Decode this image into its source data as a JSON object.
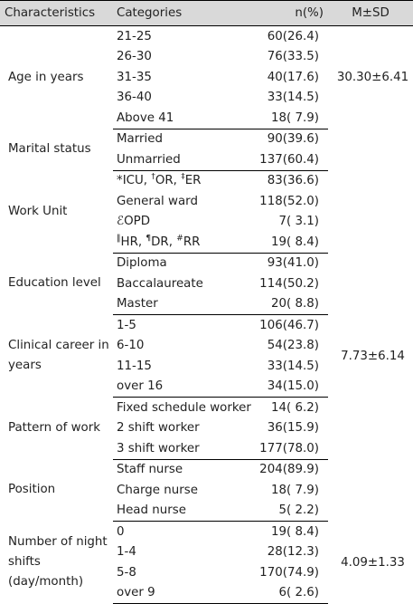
{
  "headers": {
    "characteristics": "Characteristics",
    "categories": "Categories",
    "n_pct": "n(%)",
    "m_sd": "M±SD"
  },
  "groups": {
    "age": {
      "label": "Age  in  years",
      "msd": "30.30±6.41",
      "rows": [
        {
          "cat": "21-25",
          "n": "60(26.4)"
        },
        {
          "cat": "26-30",
          "n": "76(33.5)"
        },
        {
          "cat": "31-35",
          "n": "40(17.6)"
        },
        {
          "cat": "36-40",
          "n": "33(14.5)"
        },
        {
          "cat": "Above  41",
          "n": "18(  7.9)"
        }
      ]
    },
    "marital": {
      "label": "Marital  status",
      "rows": [
        {
          "cat": "Married",
          "n": "90(39.6)"
        },
        {
          "cat": "Unmarried",
          "n": "137(60.4)"
        }
      ]
    },
    "work_unit": {
      "label": "Work  Unit",
      "rows": [
        {
          "m1": "*",
          "a": "ICU, ",
          "m2": "†",
          "b": "OR, ",
          "m3": "‡",
          "c": "ER",
          "n": "83(36.6)"
        },
        {
          "cat": "General  ward",
          "n": "118(52.0)"
        },
        {
          "m1": "ℰ",
          "a": "OPD",
          "n": "7(  3.1)"
        },
        {
          "m1": "‖",
          "a": "HR,  ",
          "m2": "¶",
          "b": "DR,  ",
          "m3": "#",
          "c": "RR",
          "n": "19(  8.4)"
        }
      ]
    },
    "education": {
      "label": "Education  level",
      "rows": [
        {
          "cat": "Diploma",
          "n": "93(41.0)"
        },
        {
          "cat": "Baccalaureate",
          "n": "114(50.2)"
        },
        {
          "cat": "Master",
          "n": "20(  8.8)"
        }
      ]
    },
    "career": {
      "label": "Clinical  career in  years",
      "msd": "7.73±6.14",
      "rows": [
        {
          "cat": "1-5",
          "n": "106(46.7)"
        },
        {
          "cat": "6-10",
          "n": "54(23.8)"
        },
        {
          "cat": "11-15",
          "n": "33(14.5)"
        },
        {
          "cat": "over  16",
          "n": "34(15.0)"
        }
      ]
    },
    "pattern": {
      "label": "Pattern  of work",
      "rows": [
        {
          "cat": "Fixed  schedule  worker",
          "n": "14(  6.2)"
        },
        {
          "cat": "2  shift  worker",
          "n": "36(15.9)"
        },
        {
          "cat": "3  shift  worker",
          "n": "177(78.0)"
        }
      ]
    },
    "position": {
      "label": "Position",
      "rows": [
        {
          "cat": "Staff  nurse",
          "n": "204(89.9)"
        },
        {
          "cat": "Charge  nurse",
          "n": "18(  7.9)"
        },
        {
          "cat": "Head  nurse",
          "n": "5(  2.2)"
        }
      ]
    },
    "night": {
      "label": "Number  of night  shifts (day/month)",
      "msd": "4.09±1.33",
      "rows": [
        {
          "cat": "0",
          "n": "19(  8.4)"
        },
        {
          "cat": "1-4",
          "n": "28(12.3)"
        },
        {
          "cat": "5-8",
          "n": "170(74.9)"
        },
        {
          "cat": "over  9",
          "n": "6(  2.6)"
        }
      ]
    }
  }
}
